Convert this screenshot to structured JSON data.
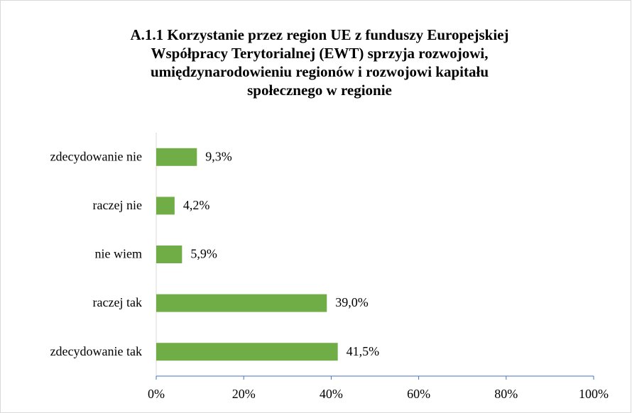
{
  "chart_data": {
    "type": "bar",
    "orientation": "horizontal",
    "title": "A.1.1 Korzystanie przez region UE z funduszy Europejskiej\nWspółpracy Terytorialnej (EWT) sprzyja rozwojowi,\numiędzynarodowieniu regionów  i rozwojowi kapitału\nspołecznego w regionie",
    "categories": [
      "zdecydowanie nie",
      "raczej nie",
      "nie wiem",
      "raczej tak",
      "zdecydowanie tak"
    ],
    "values": [
      9.3,
      4.2,
      5.9,
      39.0,
      41.5
    ],
    "value_labels": [
      "9,3%",
      "4,2%",
      "5,9%",
      "39,0%",
      "41,5%"
    ],
    "color": "#70ad47",
    "xlim": [
      0,
      100
    ],
    "xticks": [
      {
        "value": 0,
        "label": "0%"
      },
      {
        "value": 20,
        "label": "20%"
      },
      {
        "value": 40,
        "label": "40%"
      },
      {
        "value": 60,
        "label": "60%"
      },
      {
        "value": 80,
        "label": "80%"
      },
      {
        "value": 100,
        "label": "100%"
      }
    ],
    "grid": false
  }
}
